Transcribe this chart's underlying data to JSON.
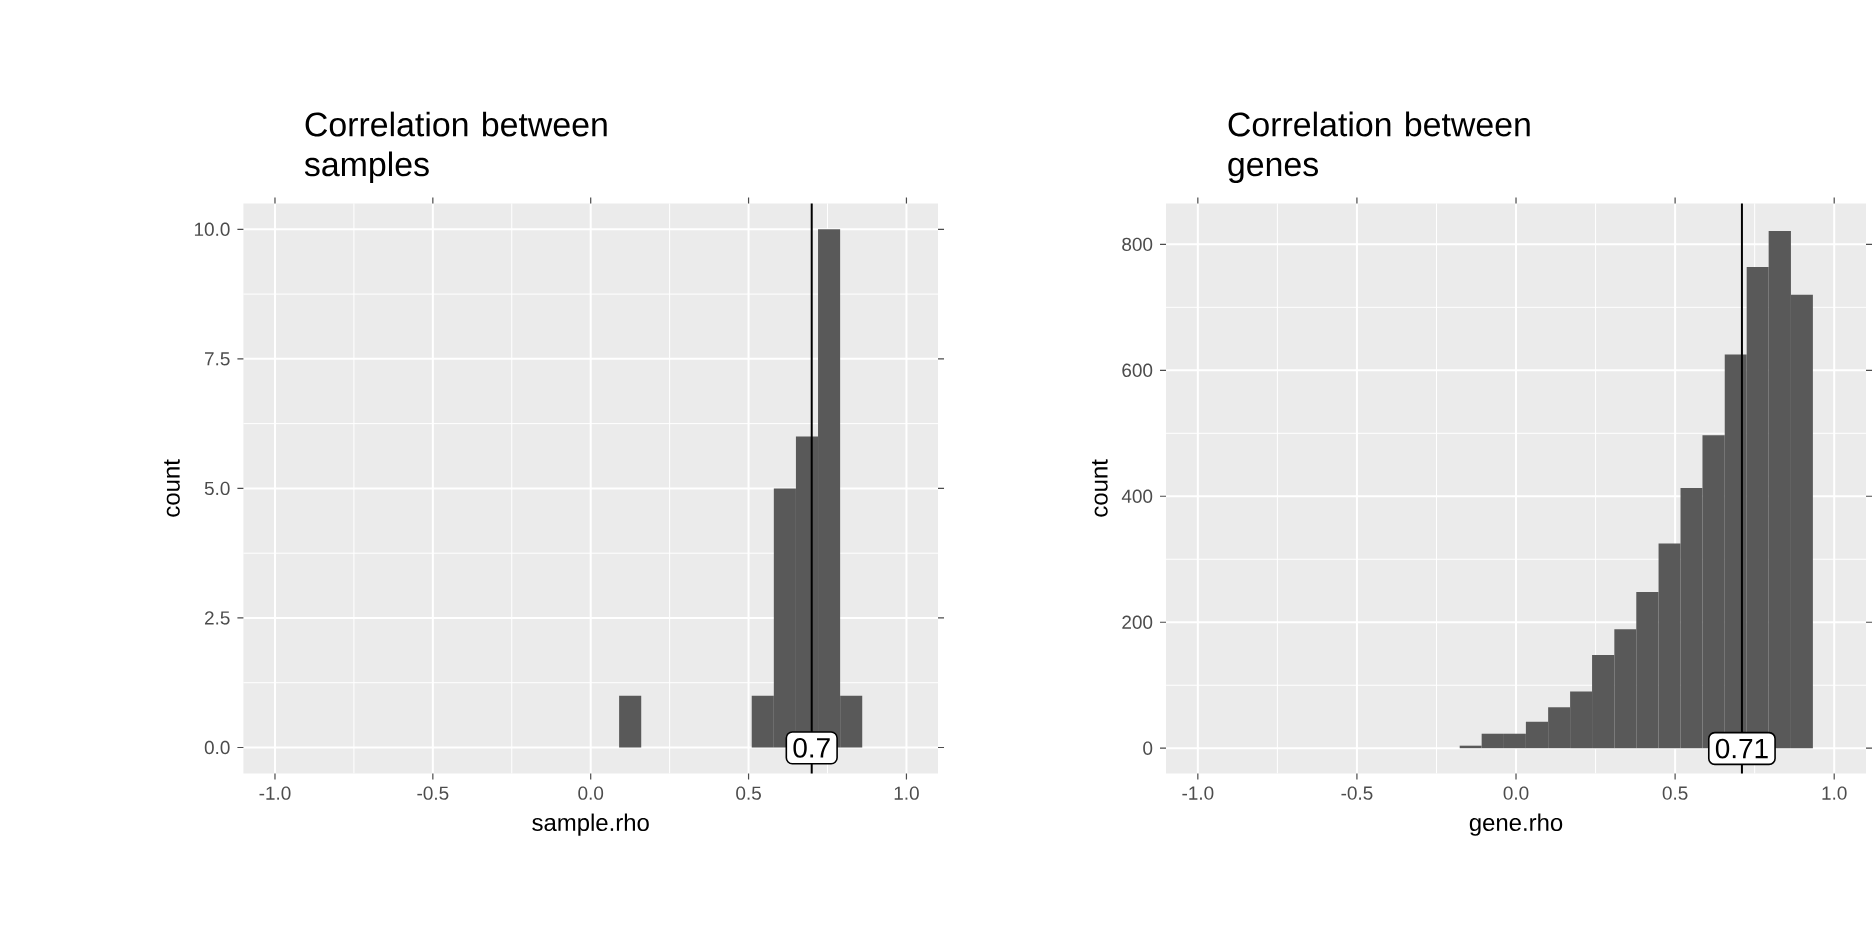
{
  "chart_data": [
    {
      "type": "histogram",
      "title": "Correlation between samples",
      "xlabel": "sample.rho",
      "ylabel": "count",
      "bins": [
        0.09,
        0.16,
        0.23,
        0.3,
        0.37,
        0.44,
        0.51,
        0.58,
        0.65,
        0.72,
        0.79,
        0.86
      ],
      "values": [
        1,
        0,
        0,
        0,
        0,
        0,
        1,
        5,
        6,
        10,
        1
      ],
      "color": "#595959",
      "xlim": [
        -1.1,
        1.1
      ],
      "ylim": [
        -0.5,
        10.5
      ],
      "xticks": [
        {
          "value": -1,
          "label": "-1.0"
        },
        {
          "value": -0.5,
          "label": "-0.5"
        },
        {
          "value": 0,
          "label": "0.0"
        },
        {
          "value": 0.5,
          "label": "0.5"
        },
        {
          "value": 1,
          "label": "1.0"
        }
      ],
      "yticks": [
        {
          "value": 0,
          "label": "0.0"
        },
        {
          "value": 2.5,
          "label": "2.5"
        },
        {
          "value": 5,
          "label": "5.0"
        },
        {
          "value": 7.5,
          "label": "7.5"
        },
        {
          "value": 10,
          "label": "10.0"
        }
      ],
      "grid": true,
      "ref_lines": [
        {
          "axis": "x",
          "value": 0.7,
          "label": "0.7",
          "color": "#000000"
        }
      ]
    },
    {
      "type": "histogram",
      "title": "Correlation between genes",
      "xlabel": "gene.rho",
      "ylabel": "count",
      "bins": [
        -0.177,
        -0.108,
        -0.038,
        0.031,
        0.101,
        0.17,
        0.239,
        0.309,
        0.378,
        0.448,
        0.517,
        0.586,
        0.656,
        0.725,
        0.794,
        0.864,
        0.933
      ],
      "values": [
        4,
        23,
        23,
        42,
        65,
        90,
        148,
        189,
        248,
        325,
        413,
        497,
        625,
        764,
        821,
        720
      ],
      "color": "#595959",
      "xlim": [
        -1.1,
        1.1
      ],
      "ylim": [
        -40,
        865
      ],
      "xticks": [
        {
          "value": -1,
          "label": "-1.0"
        },
        {
          "value": -0.5,
          "label": "-0.5"
        },
        {
          "value": 0,
          "label": "0.0"
        },
        {
          "value": 0.5,
          "label": "0.5"
        },
        {
          "value": 1,
          "label": "1.0"
        }
      ],
      "yticks": [
        0,
        200,
        400,
        600,
        800
      ],
      "grid": true,
      "ref_lines": [
        {
          "axis": "x",
          "value": 0.71,
          "label": "0.71",
          "color": "#000000"
        }
      ]
    }
  ]
}
